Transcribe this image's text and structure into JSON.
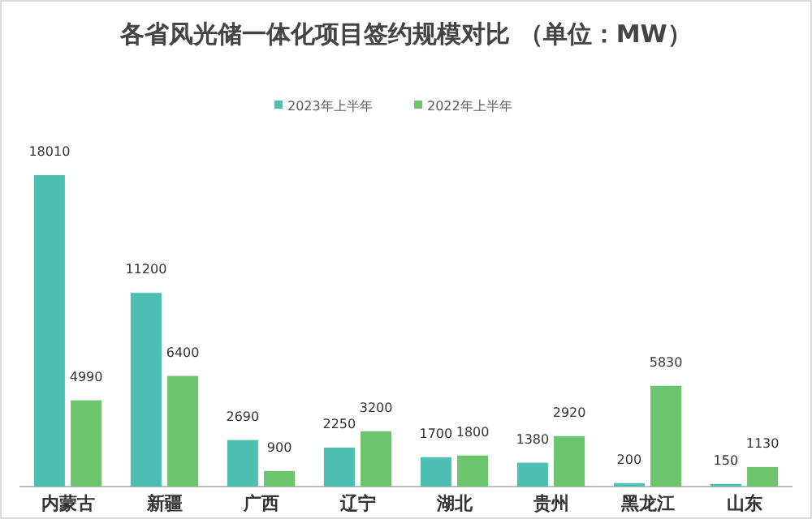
{
  "chart_data": {
    "type": "bar",
    "title": "各省风光储一体化项目签约规模对比 （单位：MW）",
    "categories": [
      "内蒙古",
      "新疆",
      "广西",
      "辽宁",
      "湖北",
      "贵州",
      "黑龙江",
      "山东"
    ],
    "series": [
      {
        "name": "2023年上半年",
        "color": "#4dbfb2",
        "values": [
          18010,
          11200,
          2690,
          2250,
          1700,
          1380,
          200,
          150
        ]
      },
      {
        "name": "2022年上半年",
        "color": "#6cc46c",
        "values": [
          4990,
          6400,
          900,
          3200,
          1800,
          2920,
          5830,
          1130
        ]
      }
    ],
    "data_labels": true,
    "legend": "top"
  }
}
